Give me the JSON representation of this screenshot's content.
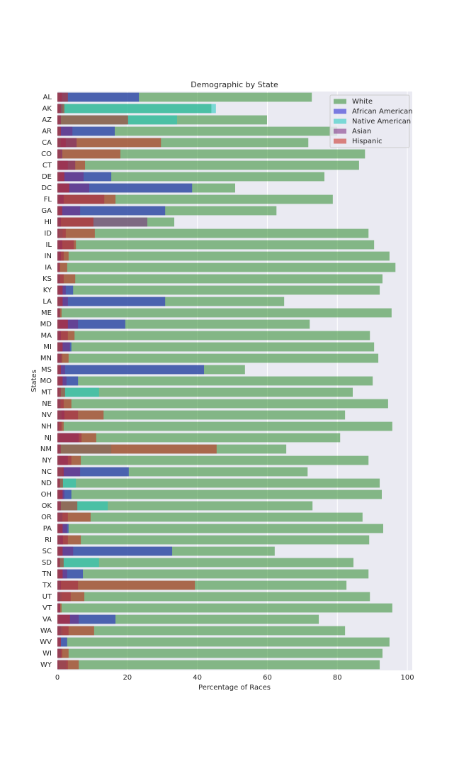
{
  "chart_data": {
    "type": "barh",
    "title": "Demographic by State",
    "x_label": "Percentage of Races",
    "y_label": "States",
    "categories": [
      "AL",
      "AK",
      "AZ",
      "AR",
      "CA",
      "CO",
      "CT",
      "DE",
      "DC",
      "FL",
      "GA",
      "HI",
      "ID",
      "IL",
      "IN",
      "IA",
      "KS",
      "KY",
      "LA",
      "ME",
      "MD",
      "MA",
      "MI",
      "MN",
      "MS",
      "MO",
      "MT",
      "NE",
      "NV",
      "NH",
      "NJ",
      "NM",
      "NY",
      "NC",
      "ND",
      "OH",
      "OK",
      "OR",
      "PA",
      "RI",
      "SC",
      "SD",
      "TN",
      "TX",
      "UT",
      "VT",
      "VA",
      "WA",
      "WV",
      "WI",
      "WY"
    ],
    "series": [
      {
        "name": "White",
        "color": "#2e8b2e",
        "values": [
          72.7,
          44,
          59.9,
          80,
          71.7,
          87.9,
          86.2,
          76.3,
          50.8,
          78.7,
          62.6,
          33.4,
          88.9,
          90.5,
          94.9,
          96.6,
          92.9,
          92.1,
          64.8,
          95.5,
          72.1,
          89.3,
          90.5,
          91.7,
          53.6,
          90.1,
          84.4,
          94.5,
          82.2,
          95.7,
          80.8,
          65.4,
          88.9,
          71.5,
          92.1,
          92.7,
          72.9,
          87.2,
          93.1,
          89.1,
          62.1,
          84.6,
          88.9,
          82.6,
          89.3,
          95.7,
          74.7,
          82.2,
          94.9,
          92.9,
          92.1
        ]
      },
      {
        "name": "African American",
        "color": "#1e1ed2",
        "values": [
          23.3,
          1.5,
          1,
          16.4,
          5.5,
          1.4,
          5.1,
          15.4,
          38.5,
          1.8,
          30.8,
          1,
          0.5,
          1.4,
          1,
          0.5,
          0.8,
          4.5,
          30.8,
          0.5,
          19.4,
          1,
          4,
          1,
          41.9,
          5.9,
          0.5,
          0.8,
          2,
          0.5,
          6.1,
          0.8,
          3,
          20.4,
          0.5,
          4,
          1,
          1.4,
          3.2,
          1.6,
          32.8,
          0.5,
          7.3,
          1,
          0.8,
          0.8,
          16.6,
          1,
          2.8,
          1,
          0.5
        ]
      },
      {
        "name": "Native American",
        "color": "#1ec8c0",
        "values": [
          0.7,
          45.3,
          34.2,
          0.8,
          1,
          1,
          0.5,
          0.5,
          0.5,
          0.5,
          0.5,
          0.5,
          1.5,
          0.5,
          0.5,
          0.5,
          0.8,
          0.5,
          0.8,
          0.8,
          0.5,
          0.5,
          0.8,
          1.2,
          0.6,
          0.6,
          11.9,
          1,
          1.2,
          0.5,
          0.5,
          15.4,
          0.6,
          1.5,
          5.3,
          0.5,
          14.4,
          1.5,
          0.5,
          0.8,
          0.6,
          11.9,
          0.5,
          0.8,
          1.2,
          0.5,
          0.5,
          1.5,
          0.5,
          1,
          2.5
        ]
      },
      {
        "name": "Asian",
        "color": "#7a2a80",
        "values": [
          1.3,
          1,
          1,
          4.3,
          2.4,
          1,
          3,
          7.5,
          9.1,
          13.4,
          6.5,
          25.7,
          2.4,
          4.7,
          1.8,
          0.8,
          1.8,
          2.4,
          3,
          0.8,
          5.9,
          3,
          3.6,
          1.4,
          2.2,
          2.6,
          1,
          1.8,
          5.9,
          1.2,
          6.9,
          1,
          4,
          6.5,
          0.8,
          2,
          1,
          3,
          2.8,
          3,
          4.5,
          0.8,
          2.8,
          5.9,
          3.8,
          0.8,
          6.1,
          3.2,
          1,
          1.4,
          3
        ]
      },
      {
        "name": "Hispanic",
        "color": "#c8281e",
        "values": [
          3,
          2,
          20.2,
          1,
          29.6,
          18,
          7.9,
          2,
          3.4,
          16.6,
          1.4,
          10.3,
          10.7,
          5.3,
          3.2,
          2.8,
          5.1,
          1.5,
          1.5,
          1.2,
          3,
          4.9,
          1.5,
          3.2,
          1,
          1.5,
          2.2,
          4,
          13.2,
          1.8,
          11.1,
          45.5,
          6.7,
          1.8,
          1.6,
          1.5,
          5.7,
          9.5,
          1.5,
          6.7,
          1.5,
          1.8,
          1.5,
          39.3,
          7.7,
          1.2,
          3.6,
          10.5,
          1,
          3.2,
          6.1
        ]
      }
    ],
    "xlim": [
      0,
      101.4
    ],
    "xticks": [
      0,
      20,
      40,
      60,
      80,
      100
    ],
    "grid": true,
    "legend": "upper right"
  }
}
